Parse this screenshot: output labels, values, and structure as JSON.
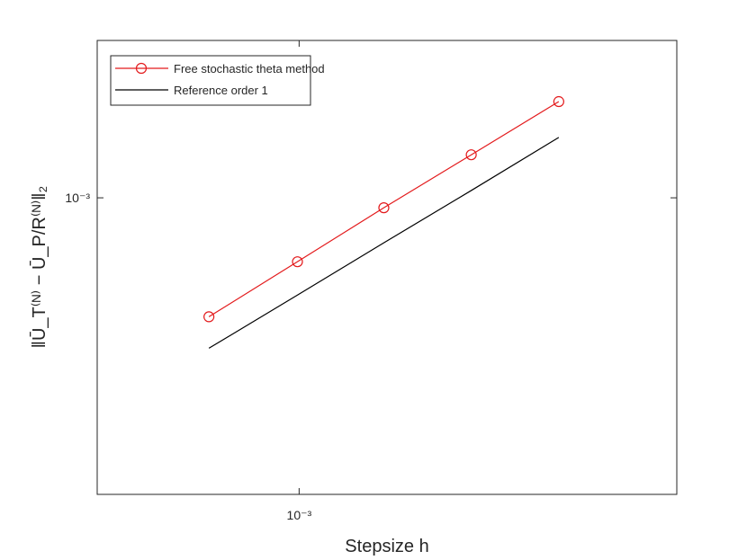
{
  "chart_data": {
    "type": "line",
    "x_label": "Stepsize h",
    "y_label": "‖Ū_T⁽ᴺ⁾ − Ū_P/R⁽ᴺ⁾‖₂",
    "x": [
      0.000577,
      0.00099,
      0.001676,
      0.002856,
      0.00487
    ],
    "series": [
      {
        "name": "Free stochastic theta method",
        "color": "#e31a1c",
        "marker": "circle",
        "values": [
          0.000332,
          0.000553,
          0.000912,
          0.00149,
          0.00244
        ]
      },
      {
        "name": "Reference order 1",
        "color": "#000000",
        "marker": "none",
        "values": [
          0.000248,
          0.000406,
          0.000659,
          0.00107,
          0.00175
        ]
      }
    ],
    "xlim": [
      0.000292,
      0.01
    ],
    "ylim": [
      6.4e-05,
      0.0043
    ],
    "xticks": [
      {
        "value": 0.001,
        "label": "10⁻³"
      }
    ],
    "yticks": [
      {
        "value": 0.001,
        "label": "10⁻³"
      }
    ],
    "log_x": true,
    "log_y": true,
    "grid": false,
    "legend": "top-left"
  }
}
